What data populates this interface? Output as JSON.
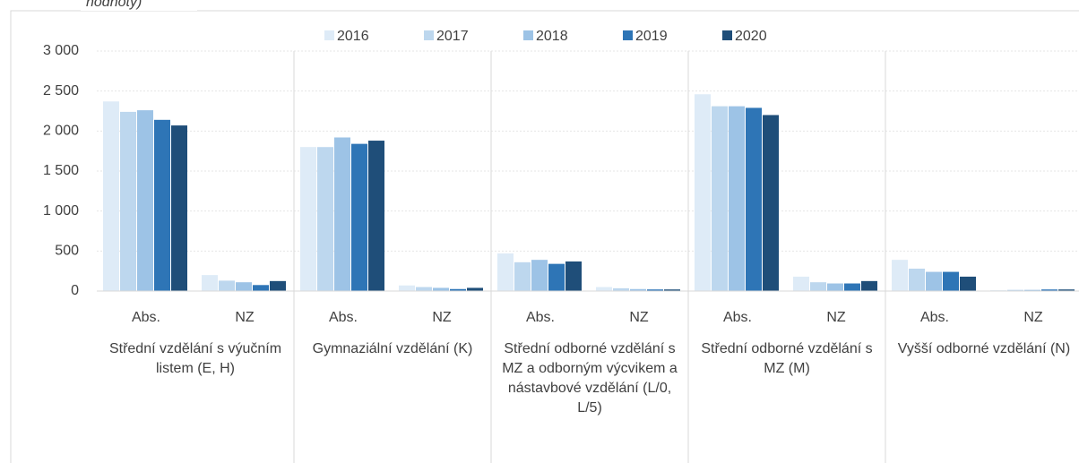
{
  "chart_data": {
    "type": "bar",
    "note_top": "hodnoty)",
    "categories": [
      "Abs.",
      "NZ",
      "Abs.",
      "NZ",
      "Abs.",
      "NZ",
      "Abs.",
      "NZ",
      "Abs.",
      "NZ"
    ],
    "groups": [
      "Střední vzdělání s výučním listem (E, H)",
      "Gymnaziální vzdělání (K)",
      "Střední odborné vzdělání s MZ a odborným výcvikem a nástavbové vzdělání (L/0, L/5)",
      "Střední odborné vzdělání s MZ (M)",
      "Vyšší odborné vzdělání (N)"
    ],
    "series": [
      {
        "name": "2016",
        "color": "#deebf7",
        "values": [
          2370,
          200,
          1800,
          70,
          470,
          50,
          2460,
          180,
          390,
          10
        ]
      },
      {
        "name": "2017",
        "color": "#bdd7ee",
        "values": [
          2240,
          130,
          1800,
          50,
          360,
          35,
          2310,
          110,
          280,
          15
        ]
      },
      {
        "name": "2018",
        "color": "#9dc3e6",
        "values": [
          2260,
          110,
          1920,
          40,
          390,
          25,
          2310,
          95,
          240,
          15
        ]
      },
      {
        "name": "2019",
        "color": "#2e75b6",
        "values": [
          2140,
          75,
          1840,
          25,
          340,
          20,
          2290,
          95,
          240,
          20
        ]
      },
      {
        "name": "2020",
        "color": "#1f4e79",
        "values": [
          2070,
          125,
          1880,
          40,
          370,
          20,
          2200,
          125,
          180,
          20
        ]
      }
    ],
    "ylim": [
      0,
      3000
    ],
    "yticks": [
      {
        "value": 0,
        "label": "0"
      },
      {
        "value": 500,
        "label": "500"
      },
      {
        "value": 1000,
        "label": "1 000"
      },
      {
        "value": 1500,
        "label": "1 500"
      },
      {
        "value": 2000,
        "label": "2 000"
      },
      {
        "value": 2500,
        "label": "2 500"
      },
      {
        "value": 3000,
        "label": "3 000"
      }
    ],
    "grid": true,
    "legend": "top"
  }
}
